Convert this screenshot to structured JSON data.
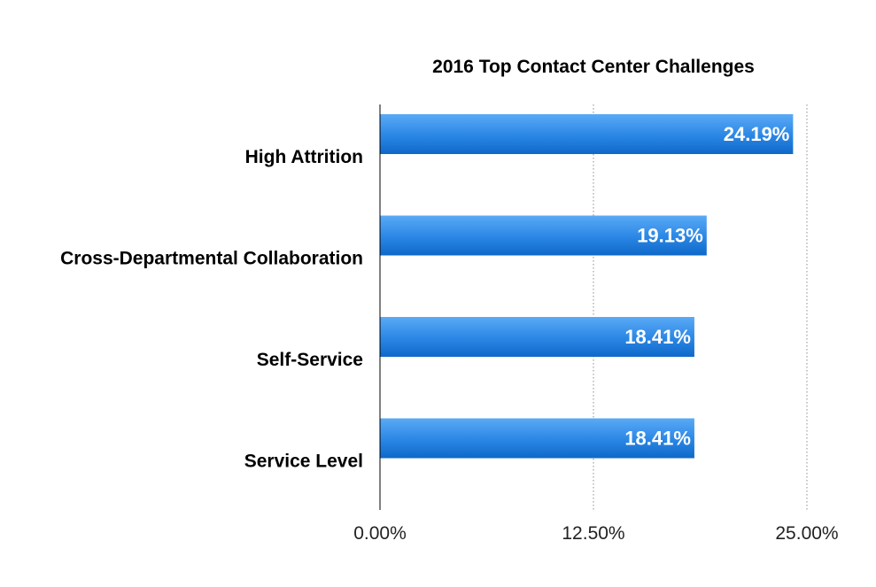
{
  "chart_data": {
    "type": "bar",
    "orientation": "horizontal",
    "title": "2016 Top Contact Center Challenges",
    "categories": [
      "High Attrition",
      "Cross-Departmental Collaboration",
      "Self-Service",
      "Service Level"
    ],
    "values": [
      24.19,
      19.13,
      18.41,
      18.41
    ],
    "data_labels": [
      "24.19%",
      "19.13%",
      "18.41%",
      "18.41%"
    ],
    "x_ticks": [
      0,
      12.5,
      25
    ],
    "x_tick_labels": [
      "0.00%",
      "12.50%",
      "25.00%"
    ],
    "xlim": [
      0,
      25
    ],
    "xlabel": "",
    "ylabel": "",
    "grid": "vertical dotted",
    "legend": "none",
    "colors": {
      "bar_top": "#5aaaf6",
      "bar_bottom": "#0e68c8",
      "data_label": "#ffffff"
    }
  }
}
